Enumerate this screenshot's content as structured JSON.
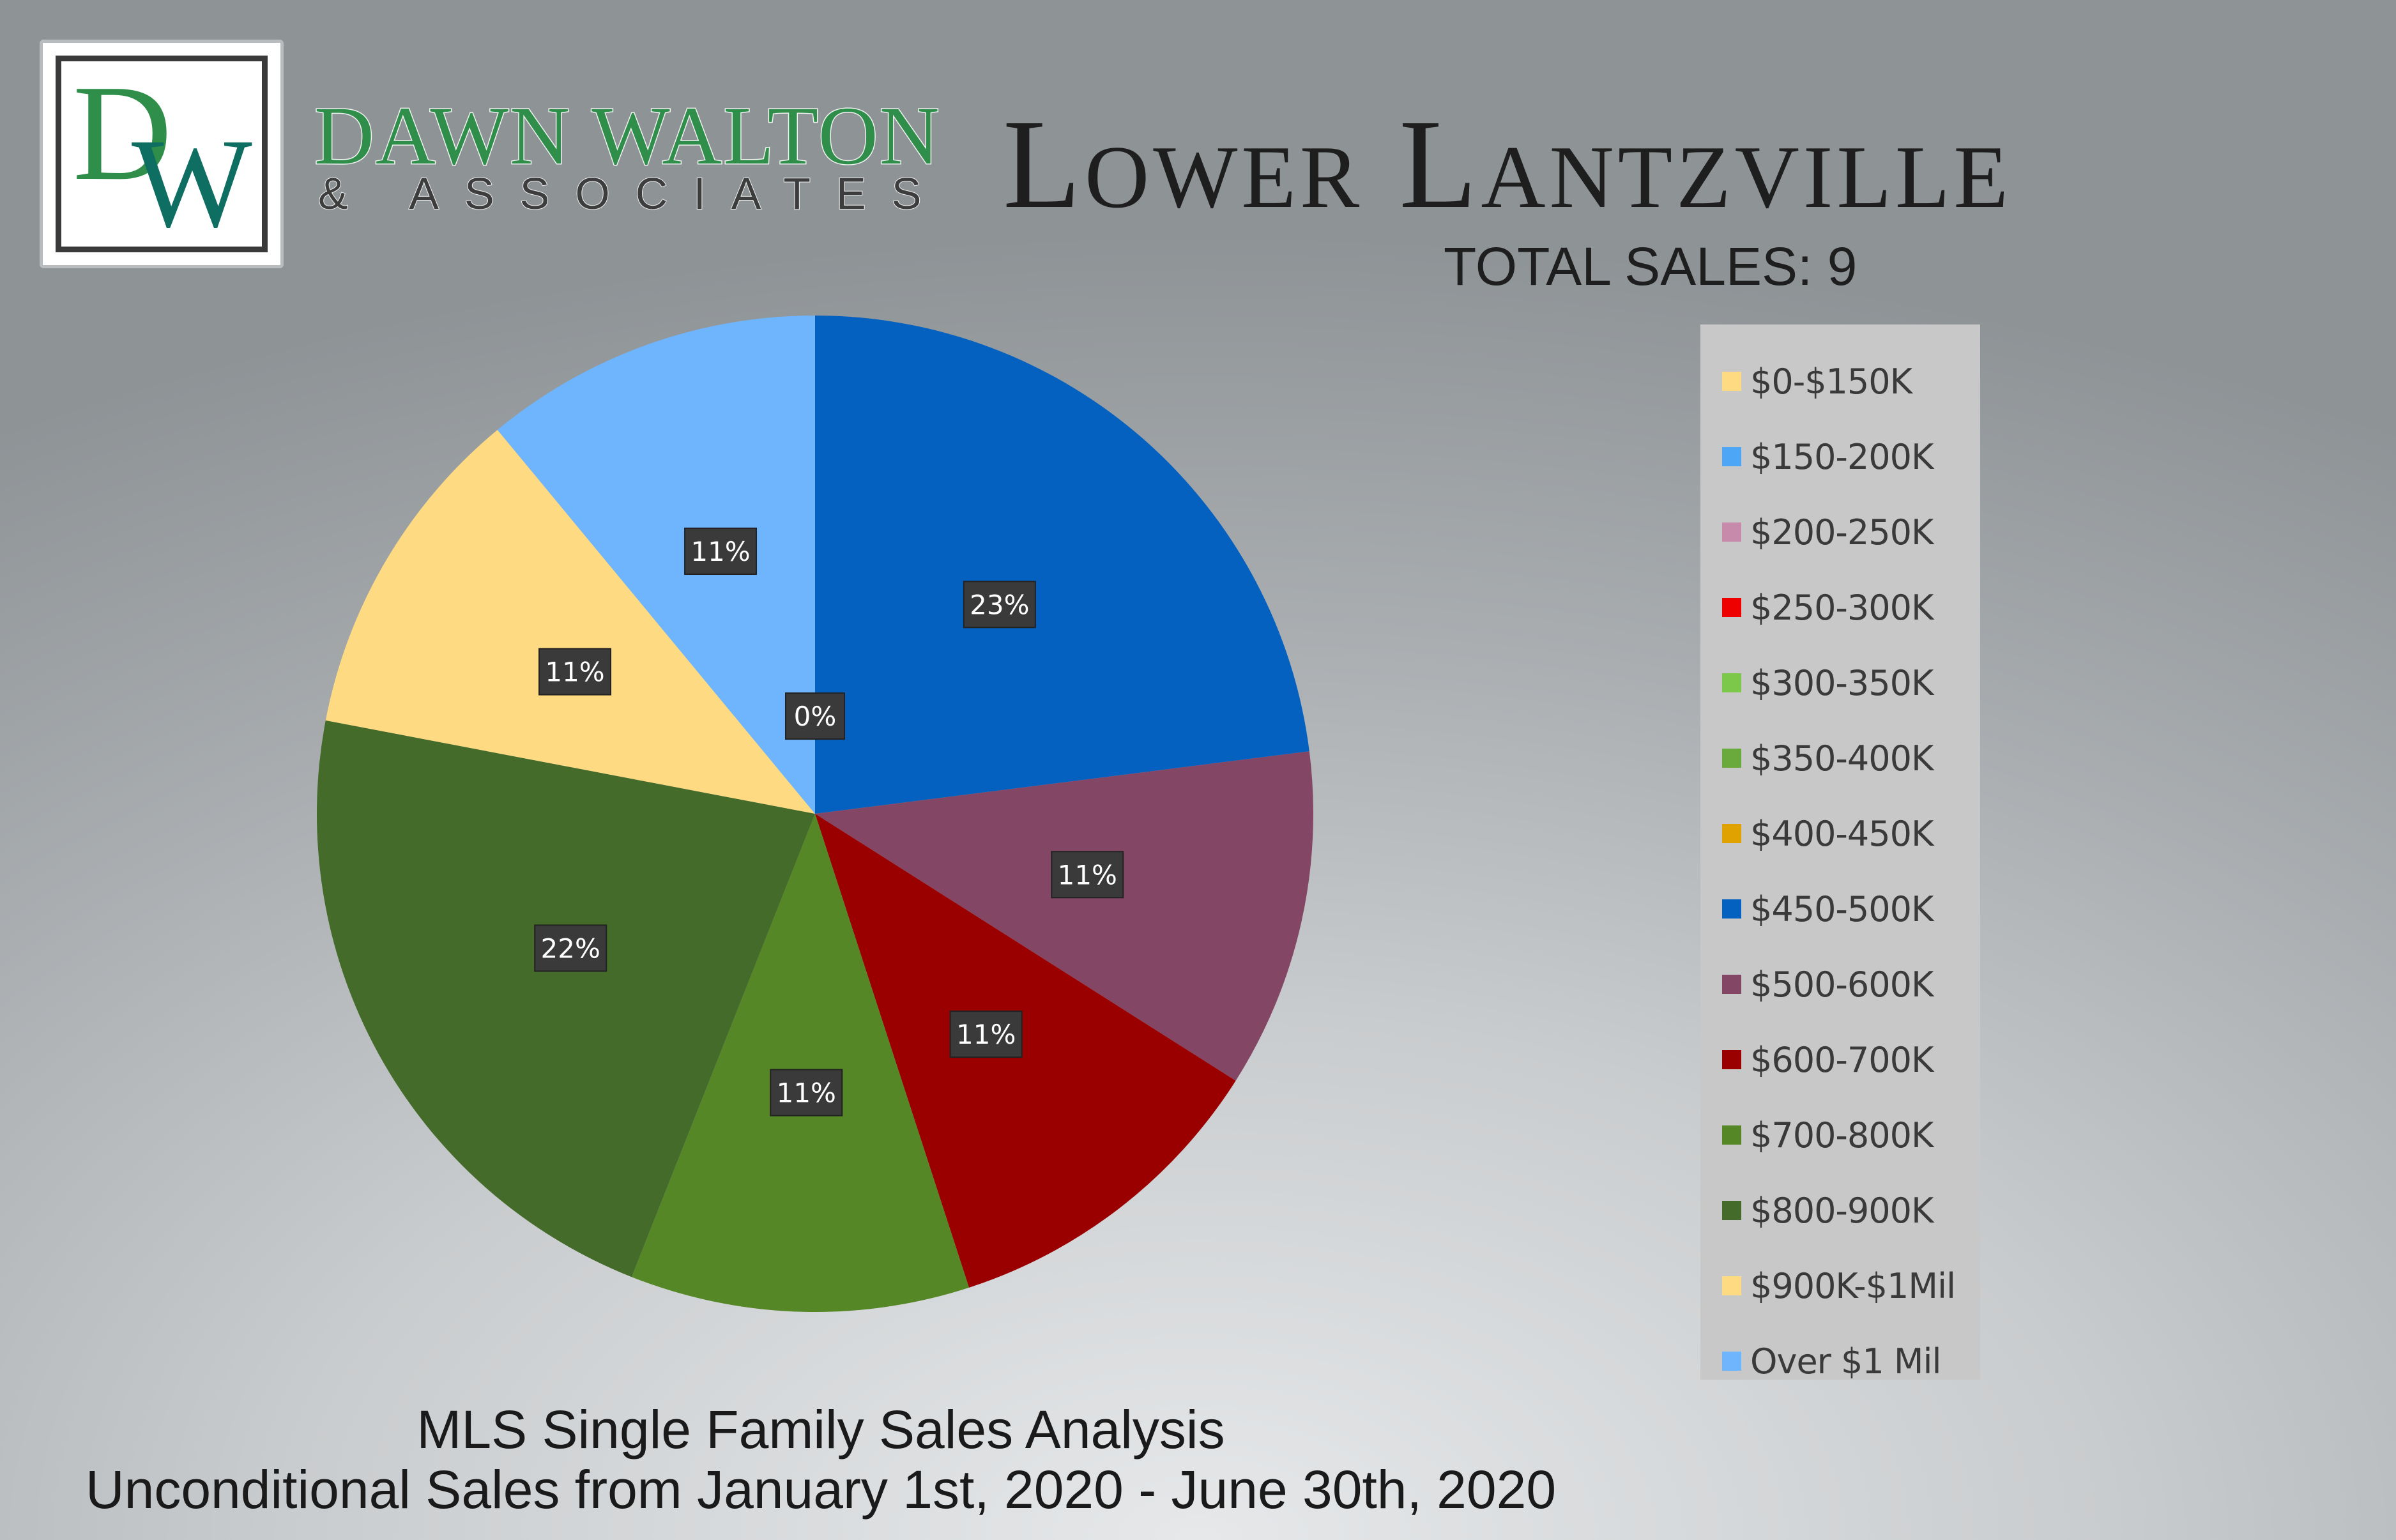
{
  "brand": {
    "logo_letters": "DW",
    "name": "DAWN WALTON",
    "sub": "& ASSOCIATES"
  },
  "title": "Lower Lantzville",
  "total_sales": "TOTAL SALES: 9",
  "footer": {
    "line1": "MLS Single Family Sales Analysis",
    "line2": "Unconditional Sales from January 1st, 2020 - June 30th, 2020"
  },
  "chart_data": {
    "type": "pie",
    "legend_position": "right",
    "categories": [
      "$0-$150K",
      "$150-200K",
      "$200-250K",
      "$250-300K",
      "$300-350K",
      "$350-400K",
      "$400-450K",
      "$450-500K",
      "$500-600K",
      "$600-700K",
      "$700-800K",
      "$800-900K",
      "$900K-$1Mil",
      "Over $1 Mil"
    ],
    "values": [
      0,
      0,
      0,
      0,
      0,
      0,
      0,
      23,
      11,
      11,
      11,
      22,
      11,
      11
    ],
    "labels": [
      "0%",
      "",
      "",
      "",
      "",
      "",
      "",
      "23%",
      "11%",
      "11%",
      "11%",
      "22%",
      "11%",
      "11%"
    ],
    "colors": [
      "#fedb82",
      "#4ea6f6",
      "#c78aaa",
      "#ef0000",
      "#7cc84a",
      "#6aaa3c",
      "#e0a200",
      "#0561bf",
      "#844665",
      "#9b0000",
      "#558726",
      "#446b2a",
      "#fedb82",
      "#6eb5fd"
    ]
  }
}
